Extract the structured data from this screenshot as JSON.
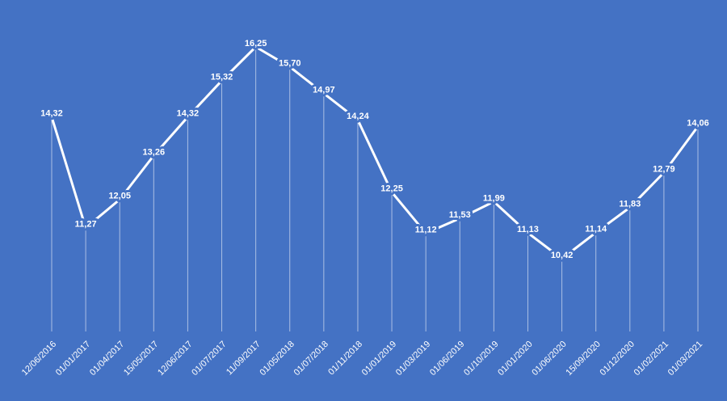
{
  "chart_data": {
    "type": "line",
    "categories": [
      "12/06/2016",
      "01/01/2017",
      "01/04/2017",
      "15/05/2017",
      "12/06/2017",
      "01/07/2017",
      "11/09/2017",
      "01/05/2018",
      "01/07/2018",
      "01/11/2018",
      "01/01/2019",
      "01/03/2019",
      "01/06/2019",
      "01/10/2019",
      "01/01/2020",
      "01/06/2020",
      "15/09/2020",
      "01/12/2020",
      "01/02/2021",
      "01/03/2021"
    ],
    "values": [
      14.32,
      11.27,
      12.05,
      13.26,
      14.32,
      15.32,
      16.25,
      15.7,
      14.97,
      14.24,
      12.25,
      11.12,
      11.53,
      11.99,
      11.13,
      10.42,
      11.14,
      11.83,
      12.79,
      14.06
    ],
    "value_labels": [
      "14,32",
      "11,27",
      "12,05",
      "13,26",
      "14,32",
      "15,32",
      "16,25",
      "15,70",
      "14,97",
      "14,24",
      "12,25",
      "11,12",
      "11,53",
      "11,99",
      "11,13",
      "10,42",
      "11,14",
      "11,83",
      "12,79",
      "14,06"
    ],
    "color": "#ffffff"
  }
}
